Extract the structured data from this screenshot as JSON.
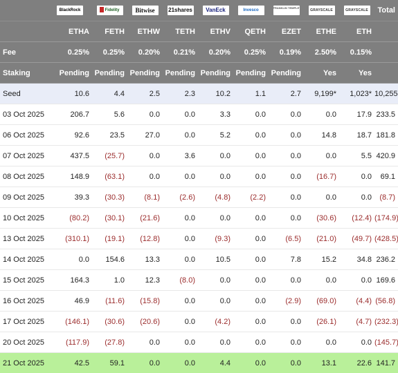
{
  "header": {
    "total_label": "Total",
    "logos": [
      {
        "icon": "blackrock-logo-icon",
        "text": "BlackRock"
      },
      {
        "icon": "fidelity-logo-icon",
        "text": "Fidelity"
      },
      {
        "icon": "bitwise-logo-icon",
        "text": "Bitwise"
      },
      {
        "icon": "21shares-logo-icon",
        "text": "21shares"
      },
      {
        "icon": "vaneck-logo-icon",
        "text": "VanEck"
      },
      {
        "icon": "invesco-logo-icon",
        "text": "Invesco"
      },
      {
        "icon": "franklin-templeton-logo-icon",
        "text": "FRANKLIN TEMPLETON"
      },
      {
        "icon": "grayscale-logo-icon",
        "text": "GRAYSCALE"
      },
      {
        "icon": "grayscale-logo-icon",
        "text": "GRAYSCALE"
      }
    ],
    "tickers": [
      "ETHA",
      "FETH",
      "ETHW",
      "TETH",
      "ETHV",
      "QETH",
      "EZET",
      "ETHE",
      "ETH"
    ],
    "fee_label": "Fee",
    "fees": [
      "0.25%",
      "0.25%",
      "0.20%",
      "0.21%",
      "0.20%",
      "0.25%",
      "0.19%",
      "2.50%",
      "0.15%"
    ],
    "staking_label": "Staking",
    "staking": [
      "Pending",
      "Pending",
      "Pending",
      "Pending",
      "Pending",
      "Pending",
      "Pending",
      "Yes",
      "Yes"
    ]
  },
  "rows": [
    {
      "label": "Seed",
      "values": [
        "10.6",
        "4.4",
        "2.5",
        "2.3",
        "10.2",
        "1.1",
        "2.7",
        "9,199*",
        "1,023*"
      ],
      "total": "10,255"
    },
    {
      "label": "03 Oct 2025",
      "values": [
        "206.7",
        "5.6",
        "0.0",
        "0.0",
        "3.3",
        "0.0",
        "0.0",
        "0.0",
        "17.9"
      ],
      "total": "233.5"
    },
    {
      "label": "06 Oct 2025",
      "values": [
        "92.6",
        "23.5",
        "27.0",
        "0.0",
        "5.2",
        "0.0",
        "0.0",
        "14.8",
        "18.7"
      ],
      "total": "181.8"
    },
    {
      "label": "07 Oct 2025",
      "values": [
        "437.5",
        "(25.7)",
        "0.0",
        "3.6",
        "0.0",
        "0.0",
        "0.0",
        "0.0",
        "5.5"
      ],
      "total": "420.9"
    },
    {
      "label": "08 Oct 2025",
      "values": [
        "148.9",
        "(63.1)",
        "0.0",
        "0.0",
        "0.0",
        "0.0",
        "0.0",
        "(16.7)",
        "0.0"
      ],
      "total": "69.1"
    },
    {
      "label": "09 Oct 2025",
      "values": [
        "39.3",
        "(30.3)",
        "(8.1)",
        "(2.6)",
        "(4.8)",
        "(2.2)",
        "0.0",
        "0.0",
        "0.0"
      ],
      "total": "(8.7)"
    },
    {
      "label": "10 Oct 2025",
      "values": [
        "(80.2)",
        "(30.1)",
        "(21.6)",
        "0.0",
        "0.0",
        "0.0",
        "0.0",
        "(30.6)",
        "(12.4)"
      ],
      "total": "(174.9)"
    },
    {
      "label": "13 Oct 2025",
      "values": [
        "(310.1)",
        "(19.1)",
        "(12.8)",
        "0.0",
        "(9.3)",
        "0.0",
        "(6.5)",
        "(21.0)",
        "(49.7)"
      ],
      "total": "(428.5)"
    },
    {
      "label": "14 Oct 2025",
      "values": [
        "0.0",
        "154.6",
        "13.3",
        "0.0",
        "10.5",
        "0.0",
        "7.8",
        "15.2",
        "34.8"
      ],
      "total": "236.2"
    },
    {
      "label": "15 Oct 2025",
      "values": [
        "164.3",
        "1.0",
        "12.3",
        "(8.0)",
        "0.0",
        "0.0",
        "0.0",
        "0.0",
        "0.0"
      ],
      "total": "169.6"
    },
    {
      "label": "16 Oct 2025",
      "values": [
        "46.9",
        "(11.6)",
        "(15.8)",
        "0.0",
        "0.0",
        "0.0",
        "(2.9)",
        "(69.0)",
        "(4.4)"
      ],
      "total": "(56.8)"
    },
    {
      "label": "17 Oct 2025",
      "values": [
        "(146.1)",
        "(30.6)",
        "(20.6)",
        "0.0",
        "(4.2)",
        "0.0",
        "0.0",
        "(26.1)",
        "(4.7)"
      ],
      "total": "(232.3)"
    },
    {
      "label": "20 Oct 2025",
      "values": [
        "(117.9)",
        "(27.8)",
        "0.0",
        "0.0",
        "0.0",
        "0.0",
        "0.0",
        "0.0",
        "0.0"
      ],
      "total": "(145.7)"
    },
    {
      "label": "21 Oct 2025",
      "values": [
        "42.5",
        "59.1",
        "0.0",
        "0.0",
        "4.4",
        "0.0",
        "0.0",
        "13.1",
        "22.6"
      ],
      "total": "141.7"
    }
  ],
  "colors": {
    "header_bg": "#7f7f7f",
    "seed_bg": "#e9edf8",
    "highlight_bg": "#b9f09a",
    "negative": "#9b2c2c"
  }
}
